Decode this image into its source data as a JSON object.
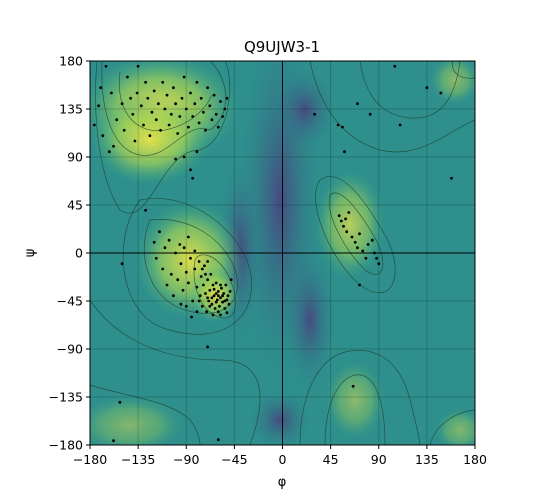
{
  "chart_data": {
    "type": "scatter",
    "title": "Q9UJW3-1",
    "xlabel": "φ",
    "ylabel": "ψ",
    "xlim": [
      -180,
      180
    ],
    "ylim": [
      -180,
      180
    ],
    "xticks": [
      -180,
      -135,
      -90,
      -45,
      0,
      45,
      90,
      135,
      180
    ],
    "yticks": [
      -180,
      -135,
      -90,
      -45,
      0,
      45,
      90,
      135,
      180
    ],
    "xtick_labels": [
      "−180",
      "−135",
      "−90",
      "−45",
      "0",
      "45",
      "90",
      "135",
      "180"
    ],
    "ytick_labels": [
      "−180",
      "−135",
      "−90",
      "−45",
      "0",
      "45",
      "90",
      "135",
      "180"
    ],
    "grid": true,
    "background": "ramachandran density heatmap with contour lines",
    "colors": {
      "point": "#000000",
      "density_low": "#482575",
      "density_mid": "#2f9c8b",
      "density_high": "#e6e14a",
      "contour": "#1f3d2c"
    },
    "points": [
      [
        -176,
        120
      ],
      [
        -170,
        155
      ],
      [
        -165,
        175
      ],
      [
        -160,
        150
      ],
      [
        -158,
        100
      ],
      [
        -155,
        125
      ],
      [
        -150,
        140
      ],
      [
        -148,
        115
      ],
      [
        -145,
        165
      ],
      [
        -142,
        145
      ],
      [
        -140,
        130
      ],
      [
        -138,
        105
      ],
      [
        -136,
        150
      ],
      [
        -135,
        175
      ],
      [
        -132,
        138
      ],
      [
        -130,
        120
      ],
      [
        -128,
        160
      ],
      [
        -126,
        145
      ],
      [
        -124,
        110
      ],
      [
        -122,
        132
      ],
      [
        -120,
        152
      ],
      [
        -118,
        125
      ],
      [
        -116,
        140
      ],
      [
        -114,
        115
      ],
      [
        -112,
        160
      ],
      [
        -110,
        135
      ],
      [
        -108,
        148
      ],
      [
        -106,
        120
      ],
      [
        -104,
        130
      ],
      [
        -102,
        155
      ],
      [
        -100,
        140
      ],
      [
        -98,
        112
      ],
      [
        -96,
        128
      ],
      [
        -94,
        145
      ],
      [
        -92,
        165
      ],
      [
        -90,
        135
      ],
      [
        -88,
        118
      ],
      [
        -86,
        150
      ],
      [
        -84,
        128
      ],
      [
        -82,
        140
      ],
      [
        -80,
        160
      ],
      [
        -78,
        122
      ],
      [
        -76,
        145
      ],
      [
        -74,
        132
      ],
      [
        -72,
        115
      ],
      [
        -70,
        155
      ],
      [
        -68,
        138
      ],
      [
        -66,
        125
      ],
      [
        -64,
        148
      ],
      [
        -62,
        130
      ],
      [
        -60,
        118
      ],
      [
        -58,
        142
      ],
      [
        -56,
        128
      ],
      [
        -54,
        135
      ],
      [
        -52,
        145
      ],
      [
        -100,
        88
      ],
      [
        -92,
        90
      ],
      [
        -86,
        78
      ],
      [
        -84,
        70
      ],
      [
        -80,
        95
      ],
      [
        -168,
        110
      ],
      [
        -162,
        95
      ],
      [
        -172,
        138
      ],
      [
        -128,
        40
      ],
      [
        -120,
        10
      ],
      [
        -118,
        -5
      ],
      [
        -115,
        20
      ],
      [
        -112,
        -15
      ],
      [
        -110,
        5
      ],
      [
        -108,
        -30
      ],
      [
        -106,
        12
      ],
      [
        -104,
        -20
      ],
      [
        -102,
        -40
      ],
      [
        -100,
        0
      ],
      [
        -98,
        -25
      ],
      [
        -96,
        8
      ],
      [
        -95,
        -10
      ],
      [
        -93,
        -35
      ],
      [
        -92,
        5
      ],
      [
        -90,
        -18
      ],
      [
        -88,
        -28
      ],
      [
        -86,
        -5
      ],
      [
        -84,
        -45
      ],
      [
        -82,
        -15
      ],
      [
        -80,
        -32
      ],
      [
        -78,
        -8
      ],
      [
        -77,
        -40
      ],
      [
        -76,
        -22
      ],
      [
        -75,
        -50
      ],
      [
        -74,
        -30
      ],
      [
        -73,
        -12
      ],
      [
        -72,
        -38
      ],
      [
        -71,
        -55
      ],
      [
        -70,
        -25
      ],
      [
        -69,
        -45
      ],
      [
        -68,
        -35
      ],
      [
        -67,
        -20
      ],
      [
        -66,
        -48
      ],
      [
        -65,
        -30
      ],
      [
        -64,
        -40
      ],
      [
        -63,
        -52
      ],
      [
        -62,
        -28
      ],
      [
        -61,
        -44
      ],
      [
        -60,
        -36
      ],
      [
        -59,
        -50
      ],
      [
        -58,
        -42
      ],
      [
        -57,
        -33
      ],
      [
        -56,
        -46
      ],
      [
        -55,
        -38
      ],
      [
        -54,
        -52
      ],
      [
        -53,
        -30
      ],
      [
        -52,
        -44
      ],
      [
        -51,
        -40
      ],
      [
        -50,
        -48
      ],
      [
        -49,
        -36
      ],
      [
        -48,
        -25
      ],
      [
        -66,
        -42
      ],
      [
        -64,
        -34
      ],
      [
        -62,
        -46
      ],
      [
        -60,
        -40
      ],
      [
        -58,
        -30
      ],
      [
        -62,
        -38
      ],
      [
        -68,
        -50
      ],
      [
        -72,
        -20
      ],
      [
        -70,
        -42
      ],
      [
        -56,
        -40
      ],
      [
        -54,
        -45
      ],
      [
        -60,
        -55
      ],
      [
        -65,
        -58
      ],
      [
        -58,
        -58
      ],
      [
        -52,
        -56
      ],
      [
        -80,
        -55
      ],
      [
        -85,
        -60
      ],
      [
        -90,
        -50
      ],
      [
        -95,
        -48
      ],
      [
        -75,
        -15
      ],
      [
        -78,
        -45
      ],
      [
        -70,
        -8
      ],
      [
        -82,
        2
      ],
      [
        -88,
        15
      ],
      [
        -150,
        -10
      ],
      [
        -70,
        -88
      ],
      [
        -152,
        -140
      ],
      [
        -158,
        -176
      ],
      [
        -60,
        -175
      ],
      [
        30,
        130
      ],
      [
        52,
        120
      ],
      [
        56,
        118
      ],
      [
        58,
        95
      ],
      [
        70,
        140
      ],
      [
        82,
        130
      ],
      [
        110,
        120
      ],
      [
        135,
        155
      ],
      [
        148,
        150
      ],
      [
        105,
        175
      ],
      [
        53,
        35
      ],
      [
        55,
        30
      ],
      [
        57,
        25
      ],
      [
        59,
        32
      ],
      [
        60,
        20
      ],
      [
        62,
        38
      ],
      [
        65,
        15
      ],
      [
        68,
        10
      ],
      [
        70,
        5
      ],
      [
        72,
        18
      ],
      [
        75,
        2
      ],
      [
        78,
        -5
      ],
      [
        80,
        8
      ],
      [
        84,
        12
      ],
      [
        86,
        0
      ],
      [
        88,
        -5
      ],
      [
        72,
        -30
      ],
      [
        90,
        -10
      ],
      [
        66,
        -125
      ],
      [
        158,
        70
      ]
    ]
  }
}
